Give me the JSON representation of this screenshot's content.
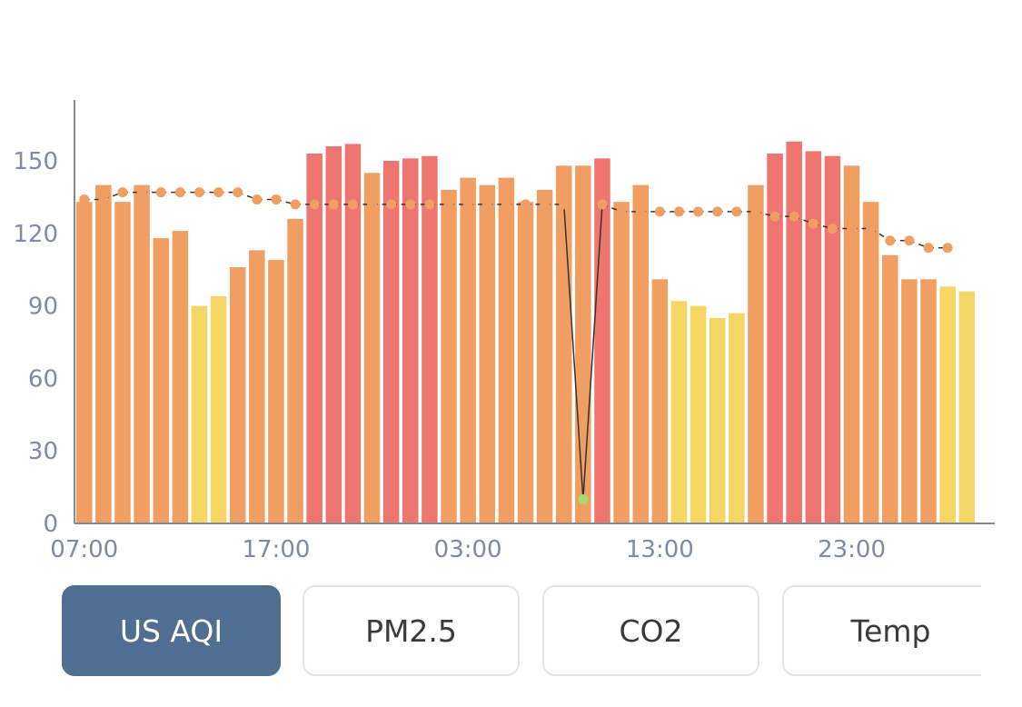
{
  "tabs": [
    {
      "label": "US AQI",
      "active": true
    },
    {
      "label": "PM2.5",
      "active": false
    },
    {
      "label": "CO2",
      "active": false
    },
    {
      "label": "Temp",
      "active": false
    }
  ],
  "colors": {
    "good": "#f5d563",
    "moderate": "#f19e62",
    "unhealthy": "#ee7570",
    "axis": "#7d8ba6",
    "line": "#333333",
    "dot_low": "#a6dc6e",
    "active_tab": "#4f6e91"
  },
  "chart_data": {
    "type": "bar",
    "ylim": [
      0,
      175
    ],
    "yticks": [
      0,
      30,
      60,
      90,
      120,
      150
    ],
    "xtick_labels": [
      "07:00",
      "17:00",
      "03:00",
      "13:00",
      "23:00"
    ],
    "xtick_positions": [
      0,
      10,
      20,
      30,
      40
    ],
    "grid": false,
    "series": [
      {
        "kind": "bar",
        "values": [
          133,
          140,
          133,
          140,
          118,
          121,
          90,
          94,
          106,
          113,
          109,
          126,
          153,
          156,
          157,
          145,
          150,
          151,
          152,
          138,
          143,
          140,
          143,
          133,
          138,
          148,
          148,
          151,
          133,
          140,
          101,
          92,
          90,
          85,
          87,
          140,
          153,
          158,
          154,
          152,
          148,
          133,
          111,
          101,
          101,
          98,
          96
        ],
        "color_levels": [
          "moderate",
          "moderate",
          "moderate",
          "moderate",
          "moderate",
          "moderate",
          "good",
          "good",
          "moderate",
          "moderate",
          "moderate",
          "moderate",
          "unhealthy",
          "unhealthy",
          "unhealthy",
          "moderate",
          "unhealthy",
          "unhealthy",
          "unhealthy",
          "moderate",
          "moderate",
          "moderate",
          "moderate",
          "moderate",
          "moderate",
          "moderate",
          "moderate",
          "unhealthy",
          "moderate",
          "moderate",
          "moderate",
          "good",
          "good",
          "good",
          "good",
          "moderate",
          "unhealthy",
          "unhealthy",
          "unhealthy",
          "unhealthy",
          "moderate",
          "moderate",
          "moderate",
          "moderate",
          "moderate",
          "good",
          "good"
        ]
      },
      {
        "kind": "line",
        "values": [
          134,
          134,
          137,
          137,
          137,
          137,
          137,
          137,
          137,
          134,
          134,
          132,
          132,
          132,
          132,
          132,
          132,
          132,
          132,
          132,
          132,
          132,
          132,
          132,
          132,
          132,
          10,
          132,
          129,
          129,
          129,
          129,
          129,
          129,
          129,
          129,
          127,
          127,
          124,
          122,
          122,
          122,
          117,
          117,
          114,
          114
        ]
      }
    ]
  }
}
